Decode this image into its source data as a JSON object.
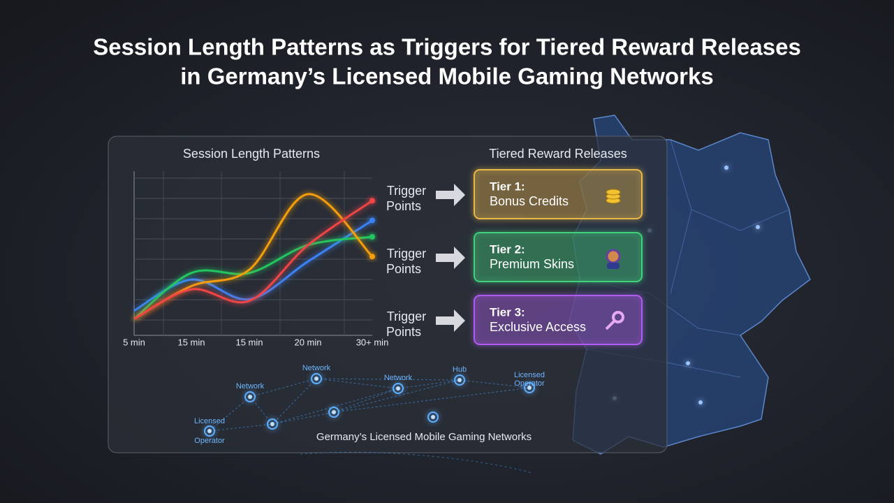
{
  "header": {
    "title_line1": "Session Length Patterns as Triggers for Tiered Reward Releases",
    "title_line2": "in Germany’s Licensed Mobile Gaming Networks"
  },
  "chart": {
    "title": "Session Length Patterns",
    "x_labels": [
      "5 min",
      "15 min",
      "15 min",
      "20 min",
      "30+ min"
    ],
    "ylim": [
      0,
      100
    ],
    "series": [
      {
        "color": "#3b82f6",
        "values": [
          15,
          34,
          22,
          45,
          70
        ]
      },
      {
        "color": "#22c55e",
        "values": [
          10,
          38,
          38,
          55,
          60
        ]
      },
      {
        "color": "#f59e0b",
        "values": [
          10,
          30,
          40,
          86,
          48
        ]
      },
      {
        "color": "#ef4444",
        "values": [
          10,
          28,
          21,
          55,
          82
        ]
      }
    ]
  },
  "rewards": {
    "title": "Tiered Reward Releases",
    "tiers": [
      {
        "trigger": [
          "Trigger",
          "Points"
        ],
        "name": "Tier 1:",
        "reward": "Bonus Credits",
        "color": "#e8b84a"
      },
      {
        "trigger": [
          "Trigger",
          "Points"
        ],
        "name": "Tier 2:",
        "reward": "Premium Skins",
        "color": "#3fd17a"
      },
      {
        "trigger": [
          "Trigger",
          "Points"
        ],
        "name": "Tier 3:",
        "reward": "Exclusive Access",
        "color": "#b15cf0"
      }
    ]
  },
  "network": {
    "caption": "Germany’s Licensed Mobile Gaming Networks",
    "nodes": [
      {
        "label": [
          "Network"
        ]
      },
      {
        "label": [
          "Network"
        ]
      },
      {
        "label": [
          "Network"
        ]
      },
      {
        "label": [
          "Hub"
        ]
      },
      {
        "label": [
          "Licensed",
          "Operator"
        ]
      },
      {
        "label": [
          "Licensed",
          "Operator"
        ]
      }
    ]
  }
}
